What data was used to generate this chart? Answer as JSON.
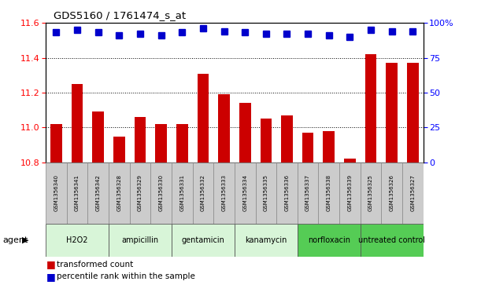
{
  "title": "GDS5160 / 1761474_s_at",
  "samples": [
    "GSM1356340",
    "GSM1356341",
    "GSM1356342",
    "GSM1356328",
    "GSM1356329",
    "GSM1356330",
    "GSM1356331",
    "GSM1356332",
    "GSM1356333",
    "GSM1356334",
    "GSM1356335",
    "GSM1356336",
    "GSM1356337",
    "GSM1356338",
    "GSM1356339",
    "GSM1356325",
    "GSM1356326",
    "GSM1356327"
  ],
  "bar_values": [
    11.02,
    11.25,
    11.09,
    10.95,
    11.06,
    11.02,
    11.02,
    11.31,
    11.19,
    11.14,
    11.05,
    11.07,
    10.97,
    10.98,
    10.82,
    11.42,
    11.37,
    11.37
  ],
  "dot_values": [
    93,
    95,
    93,
    91,
    92,
    91,
    93,
    96,
    94,
    93,
    92,
    92,
    92,
    91,
    90,
    95,
    94,
    94
  ],
  "groups": [
    {
      "label": "H2O2",
      "start": 0,
      "end": 3,
      "color": "#d8f5d8"
    },
    {
      "label": "ampicillin",
      "start": 3,
      "end": 6,
      "color": "#d8f5d8"
    },
    {
      "label": "gentamicin",
      "start": 6,
      "end": 9,
      "color": "#d8f5d8"
    },
    {
      "label": "kanamycin",
      "start": 9,
      "end": 12,
      "color": "#d8f5d8"
    },
    {
      "label": "norfloxacin",
      "start": 12,
      "end": 15,
      "color": "#55cc55"
    },
    {
      "label": "untreated control",
      "start": 15,
      "end": 18,
      "color": "#55cc55"
    }
  ],
  "ylim_left": [
    10.8,
    11.6
  ],
  "ylim_right": [
    0,
    100
  ],
  "yticks_left": [
    10.8,
    11.0,
    11.2,
    11.4,
    11.6
  ],
  "yticks_right": [
    0,
    25,
    50,
    75,
    100
  ],
  "bar_color": "#cc0000",
  "dot_color": "#0000cc",
  "bar_bottom": 10.8,
  "agent_label": "agent",
  "legend_bar": "transformed count",
  "legend_dot": "percentile rank within the sample",
  "group_colors_light": "#d8f5d8",
  "group_colors_dark": "#55cc55",
  "label_box_color": "#cccccc"
}
